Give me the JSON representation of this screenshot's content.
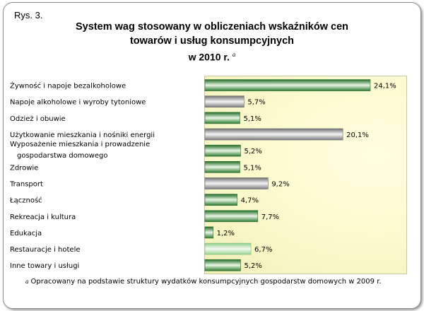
{
  "figure_label": "Rys. 3.",
  "title_line1": "System wag stosowany w obliczeniach wskaźników cen",
  "title_line2": "towarów i usług konsumpcyjnych",
  "title_line3": "w 2010 r.",
  "title_note_mark": "a",
  "footnote_mark": "a",
  "footnote": "Opracowany na podstawie struktury wydatków konsumpcyjnych gospodarstw domowych w 2009 r.",
  "colors": {
    "bar_dark": "#2e7d32",
    "bar_mid": "#6abf69",
    "bar_light": "#e8f5e0",
    "bar_gray": "#8a8a8a",
    "plot_bg": "#fcfbd0"
  },
  "chart_data": {
    "type": "bar",
    "orientation": "horizontal",
    "title": "System wag stosowany w obliczeniach wskaźników cen towarów i usług konsumpcyjnych w 2010 r.",
    "categories": [
      [
        "Żywność i napoje bezalkoholowe"
      ],
      [
        "Napoje alkoholowe i wyroby tytoniowe"
      ],
      [
        "Odzież i obuwie"
      ],
      [
        "Użytkowanie mieszkania i nośniki energii"
      ],
      [
        "Wyposażenie mieszkania i prowadzenie",
        "gospodarstwa domowego"
      ],
      [
        "Zdrowie"
      ],
      [
        "Transport"
      ],
      [
        "Łączność"
      ],
      [
        "Rekreacja i kultura"
      ],
      [
        "Edukacja"
      ],
      [
        "Restauracje i hotele"
      ],
      [
        "Inne towary i usługi"
      ]
    ],
    "values": [
      24.1,
      5.7,
      5.1,
      20.1,
      5.2,
      5.1,
      9.2,
      4.7,
      7.7,
      1.2,
      6.7,
      5.2
    ],
    "value_labels": [
      "24,1%",
      "5,7%",
      "5,1%",
      "20,1%",
      "5,2%",
      "5,1%",
      "9,2%",
      "4,7%",
      "7,7%",
      "1,2%",
      "6,7%",
      "5,2%"
    ],
    "bar_styles": [
      "green",
      "gray",
      "green",
      "gray",
      "green",
      "green",
      "gray",
      "green",
      "green",
      "green",
      "light",
      "green"
    ],
    "xlim": [
      0,
      30
    ],
    "unit": "%",
    "grid": false,
    "legend": "none"
  }
}
